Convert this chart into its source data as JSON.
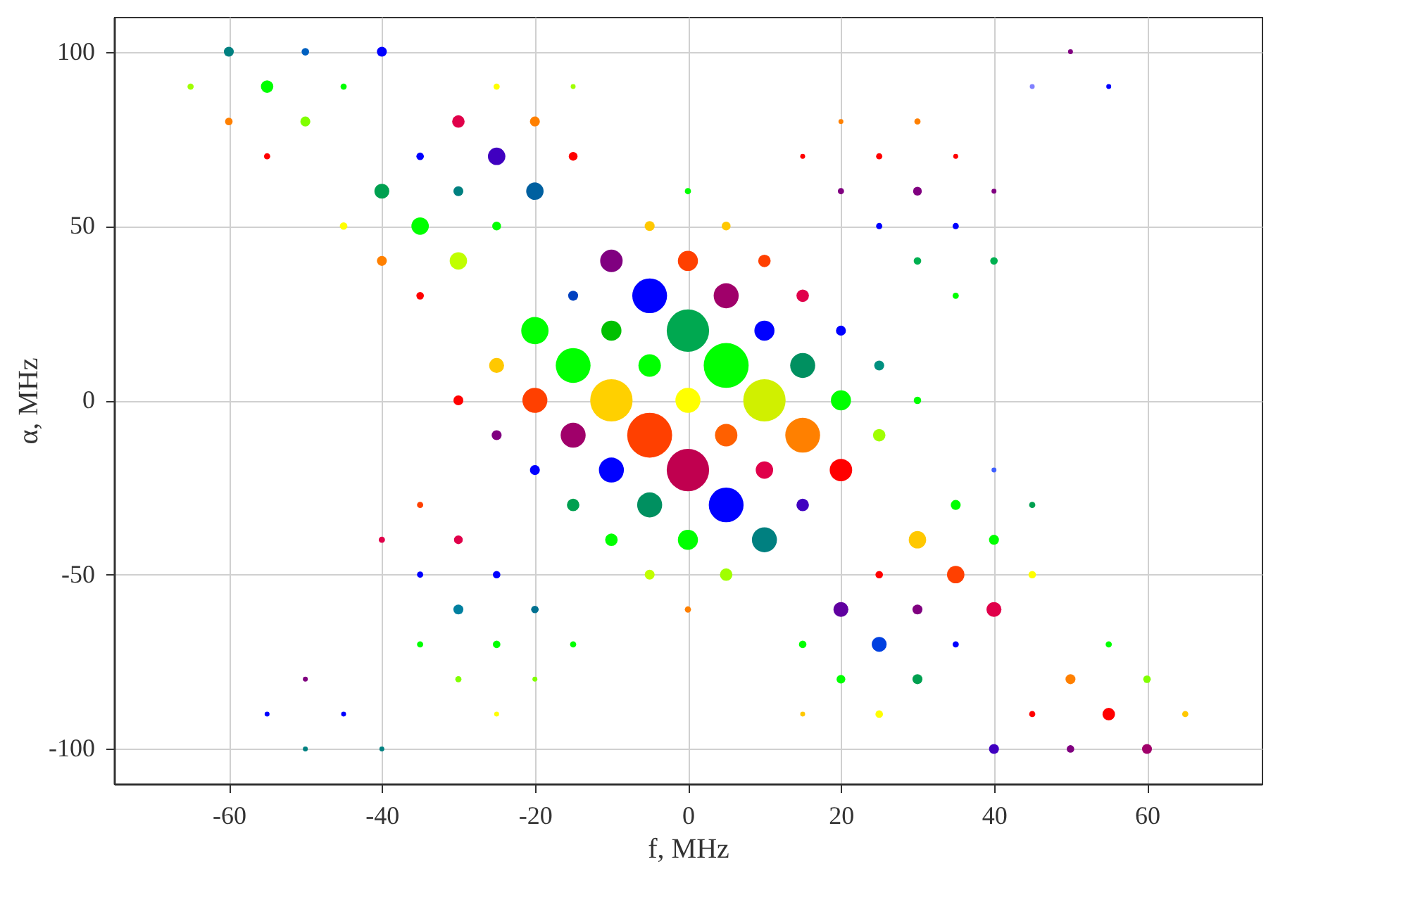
{
  "chart_data": {
    "type": "bubble",
    "xlabel": "f, MHz",
    "ylabel": "α, MHz",
    "xlim": [
      -75,
      75
    ],
    "ylim": [
      -110,
      110
    ],
    "xticks": [
      -60,
      -40,
      -20,
      0,
      20,
      40,
      60
    ],
    "yticks": [
      -100,
      -50,
      0,
      50,
      100
    ],
    "grid": true,
    "series": [
      {
        "x": [
          -60,
          -50,
          -40,
          50
        ],
        "values": [
          100,
          100,
          100,
          100
        ],
        "sizes": [
          0.049,
          0.028,
          0.049,
          0.012
        ],
        "colors": [
          "#008080",
          "#0060c0",
          "#0000ff",
          "#800080"
        ]
      },
      {
        "x": [
          -65,
          -55,
          -45,
          -25,
          -15,
          45,
          55
        ],
        "values": [
          90,
          90,
          90,
          90,
          90,
          90,
          90
        ],
        "sizes": [
          0.019,
          0.077,
          0.019,
          0.019,
          0.012,
          0.012,
          0.012
        ],
        "colors": [
          "#a0ff00",
          "#00ff00",
          "#00ff00",
          "#ffff00",
          "#a0ff00",
          "#8080ff",
          "#0000ff"
        ]
      },
      {
        "x": [
          -60,
          -50,
          -30,
          -20,
          20,
          30
        ],
        "values": [
          80,
          80,
          80,
          80,
          80,
          80
        ],
        "sizes": [
          0.028,
          0.049,
          0.077,
          0.049,
          0.012,
          0.019
        ],
        "colors": [
          "#ff8000",
          "#80ff00",
          "#e0004a",
          "#ff8000",
          "#ff8000",
          "#ff8000"
        ]
      },
      {
        "x": [
          -55,
          -35,
          -25,
          -15,
          15,
          25,
          35
        ],
        "values": [
          70,
          70,
          70,
          70,
          70,
          70,
          70
        ],
        "sizes": [
          0.019,
          0.028,
          0.15,
          0.038,
          0.012,
          0.019,
          0.012
        ],
        "colors": [
          "#ff0000",
          "#0000ff",
          "#4000c0",
          "#ff0000",
          "#ff0000",
          "#ff0000",
          "#ff0000"
        ]
      },
      {
        "x": [
          -40,
          -30,
          -20,
          0,
          20,
          30,
          40
        ],
        "values": [
          60,
          60,
          60,
          60,
          60,
          60,
          60
        ],
        "sizes": [
          0.11,
          0.049,
          0.15,
          0.019,
          0.019,
          0.038,
          0.012
        ],
        "colors": [
          "#00a050",
          "#008080",
          "#0060a0",
          "#00ff00",
          "#800080",
          "#800080",
          "#800080"
        ]
      },
      {
        "x": [
          -45,
          -35,
          -25,
          -5,
          5,
          25,
          35
        ],
        "values": [
          50,
          50,
          50,
          50,
          50,
          50,
          50
        ],
        "sizes": [
          0.028,
          0.15,
          0.038,
          0.049,
          0.038,
          0.019,
          0.019
        ],
        "colors": [
          "#ffff00",
          "#00ff00",
          "#00ff00",
          "#ffc800",
          "#ffc800",
          "#0000ff",
          "#0000ff"
        ]
      },
      {
        "x": [
          -40,
          -30,
          -10,
          0,
          10,
          30,
          40
        ],
        "values": [
          40,
          40,
          40,
          40,
          40,
          40,
          40
        ],
        "sizes": [
          0.049,
          0.15,
          0.25,
          0.2,
          0.077,
          0.028,
          0.028
        ],
        "colors": [
          "#ff8000",
          "#c0ff00",
          "#800080",
          "#ff4000",
          "#ff4000",
          "#00b050",
          "#00b050"
        ]
      },
      {
        "x": [
          -35,
          -15,
          -5,
          5,
          15,
          35
        ],
        "values": [
          30,
          30,
          30,
          30,
          30,
          30
        ],
        "sizes": [
          0.028,
          0.049,
          0.6,
          0.31,
          0.077,
          0.019
        ],
        "colors": [
          "#ff0000",
          "#0040c0",
          "#0000ff",
          "#a0006a",
          "#e0004a",
          "#00ff00"
        ]
      },
      {
        "x": [
          -20,
          -10,
          0,
          10,
          20
        ],
        "values": [
          20,
          20,
          20,
          20,
          20
        ],
        "sizes": [
          0.37,
          0.2,
          0.89,
          0.2,
          0.049
        ],
        "colors": [
          "#00ff00",
          "#00c000",
          "#00a850",
          "#0000ff",
          "#0000ff"
        ]
      },
      {
        "x": [
          -25,
          -15,
          -5,
          5,
          15,
          25
        ],
        "values": [
          10,
          10,
          10,
          10,
          10,
          10
        ],
        "sizes": [
          0.11,
          0.6,
          0.25,
          1,
          0.31,
          0.049
        ],
        "colors": [
          "#ffc800",
          "#00ff00",
          "#00ff00",
          "#00ff00",
          "#009060",
          "#009080"
        ]
      },
      {
        "x": [
          -30,
          -20,
          -10,
          0,
          10,
          20,
          30
        ],
        "values": [
          0,
          0,
          0,
          0,
          0,
          0,
          0
        ],
        "sizes": [
          0.049,
          0.31,
          0.89,
          0.31,
          0.89,
          0.2,
          0.028
        ],
        "colors": [
          "#ff0000",
          "#ff4000",
          "#ffd000",
          "#ffff00",
          "#d0f000",
          "#00ff00",
          "#00ff00"
        ]
      },
      {
        "x": [
          -25,
          -15,
          -5,
          5,
          15,
          25
        ],
        "values": [
          -10,
          -10,
          -10,
          -10,
          -10,
          -10
        ],
        "sizes": [
          0.049,
          0.31,
          1,
          0.25,
          0.6,
          0.077
        ],
        "colors": [
          "#800080",
          "#a0006a",
          "#ff4000",
          "#ff6000",
          "#ff8000",
          "#a0ff00"
        ]
      },
      {
        "x": [
          -20,
          -10,
          0,
          10,
          20,
          40
        ],
        "values": [
          -20,
          -20,
          -20,
          -20,
          -20,
          -20
        ],
        "sizes": [
          0.049,
          0.31,
          0.89,
          0.15,
          0.25,
          0.012
        ],
        "colors": [
          "#0000ff",
          "#0000ff",
          "#c0004f",
          "#e0004a",
          "#ff0000",
          "#4060ff"
        ]
      },
      {
        "x": [
          -35,
          -15,
          -5,
          5,
          15,
          35,
          45
        ],
        "values": [
          -30,
          -30,
          -30,
          -30,
          -30,
          -30,
          -30
        ],
        "sizes": [
          0.019,
          0.077,
          0.31,
          0.6,
          0.077,
          0.049,
          0.019
        ],
        "colors": [
          "#ff4000",
          "#00a050",
          "#009060",
          "#0000ff",
          "#4000c0",
          "#00ff00",
          "#00a050"
        ]
      },
      {
        "x": [
          -40,
          -30,
          -10,
          0,
          10,
          30,
          40
        ],
        "values": [
          -40,
          -40,
          -40,
          -40,
          -40,
          -40,
          -40
        ],
        "sizes": [
          0.019,
          0.038,
          0.077,
          0.2,
          0.31,
          0.15,
          0.049
        ],
        "colors": [
          "#e0004a",
          "#e0004a",
          "#00ff00",
          "#00ff00",
          "#008080",
          "#ffc800",
          "#00ff00"
        ]
      },
      {
        "x": [
          -35,
          -25,
          -5,
          5,
          25,
          35,
          45
        ],
        "values": [
          -50,
          -50,
          -50,
          -50,
          -50,
          -50,
          -50
        ],
        "sizes": [
          0.019,
          0.028,
          0.049,
          0.077,
          0.028,
          0.15,
          0.028
        ],
        "colors": [
          "#0000ff",
          "#0000ff",
          "#c0ff00",
          "#a0ff00",
          "#ff0000",
          "#ff4000",
          "#ffff00"
        ]
      },
      {
        "x": [
          -30,
          -20,
          0,
          20,
          30,
          40
        ],
        "values": [
          -60,
          -60,
          -60,
          -60,
          -60,
          -60
        ],
        "sizes": [
          0.049,
          0.028,
          0.019,
          0.11,
          0.049,
          0.11
        ],
        "colors": [
          "#0080a0",
          "#007090",
          "#ff8000",
          "#6000a0",
          "#800080",
          "#e0004a"
        ]
      },
      {
        "x": [
          -35,
          -25,
          -15,
          15,
          25,
          35,
          55
        ],
        "values": [
          -70,
          -70,
          -70,
          -70,
          -70,
          -70,
          -70
        ],
        "sizes": [
          0.019,
          0.028,
          0.019,
          0.028,
          0.11,
          0.019,
          0.019
        ],
        "colors": [
          "#00ff00",
          "#00ff00",
          "#00ff00",
          "#00ff00",
          "#0040e0",
          "#0000ff",
          "#00ff00"
        ]
      },
      {
        "x": [
          -50,
          -30,
          -20,
          20,
          30,
          50,
          60
        ],
        "values": [
          -80,
          -80,
          -80,
          -80,
          -80,
          -80,
          -80
        ],
        "sizes": [
          0.012,
          0.019,
          0.012,
          0.038,
          0.049,
          0.049,
          0.028
        ],
        "colors": [
          "#800080",
          "#80ff00",
          "#80ff00",
          "#00ff00",
          "#00a050",
          "#ff8000",
          "#80ff00"
        ]
      },
      {
        "x": [
          -55,
          -45,
          -25,
          15,
          25,
          45,
          55,
          65
        ],
        "values": [
          -90,
          -90,
          -90,
          -90,
          -90,
          -90,
          -90,
          -90
        ],
        "sizes": [
          0.012,
          0.012,
          0.012,
          0.012,
          0.028,
          0.019,
          0.077,
          0.019
        ],
        "colors": [
          "#0000ff",
          "#0000ff",
          "#ffff00",
          "#ffc800",
          "#ffff00",
          "#ff0000",
          "#ff0000",
          "#ffc800"
        ]
      },
      {
        "x": [
          -50,
          -40,
          40,
          50,
          60
        ],
        "values": [
          -100,
          -100,
          -100,
          -100,
          -100
        ],
        "sizes": [
          0.012,
          0.012,
          0.049,
          0.028,
          0.049
        ],
        "colors": [
          "#008080",
          "#008080",
          "#4000c0",
          "#800080",
          "#a0006a"
        ]
      }
    ]
  }
}
